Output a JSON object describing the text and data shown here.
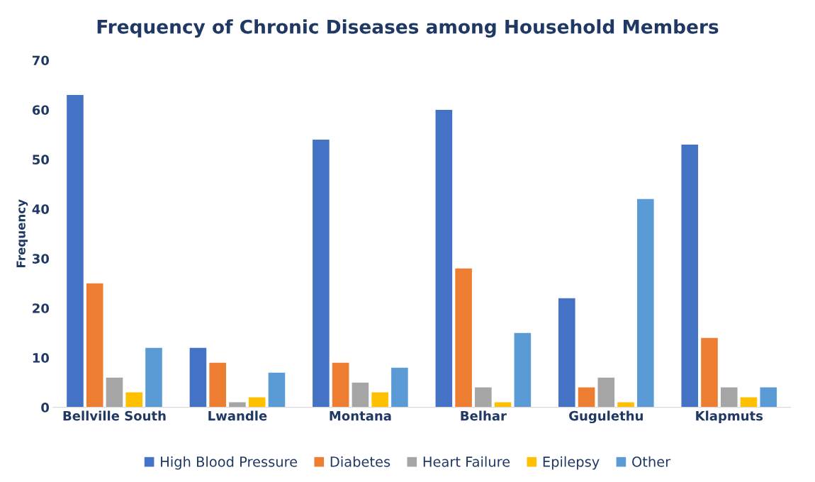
{
  "chart_data": {
    "type": "bar",
    "title": "Frequency of Chronic Diseases among Household Members",
    "ylabel": "Frequency",
    "categories": [
      "Bellville South",
      "Lwandle",
      "Montana",
      "Belhar",
      "Gugulethu",
      "Klapmuts"
    ],
    "series": [
      {
        "name": "High Blood Pressure",
        "color": "#4472c4",
        "values": [
          63,
          12,
          54,
          60,
          22,
          53
        ]
      },
      {
        "name": "Diabetes",
        "color": "#ed7d31",
        "values": [
          25,
          9,
          9,
          28,
          4,
          14
        ]
      },
      {
        "name": "Heart Failure",
        "color": "#a5a5a5",
        "values": [
          6,
          1,
          5,
          4,
          6,
          4
        ]
      },
      {
        "name": "Epilepsy",
        "color": "#ffc000",
        "values": [
          3,
          2,
          3,
          1,
          1,
          2
        ]
      },
      {
        "name": "Other",
        "color": "#5b9bd5",
        "values": [
          12,
          7,
          8,
          15,
          42,
          4
        ]
      }
    ],
    "ylim": [
      0,
      70
    ],
    "yticks": [
      0,
      10,
      20,
      30,
      40,
      50,
      60,
      70
    ],
    "grid": false,
    "legend": "bottom"
  }
}
